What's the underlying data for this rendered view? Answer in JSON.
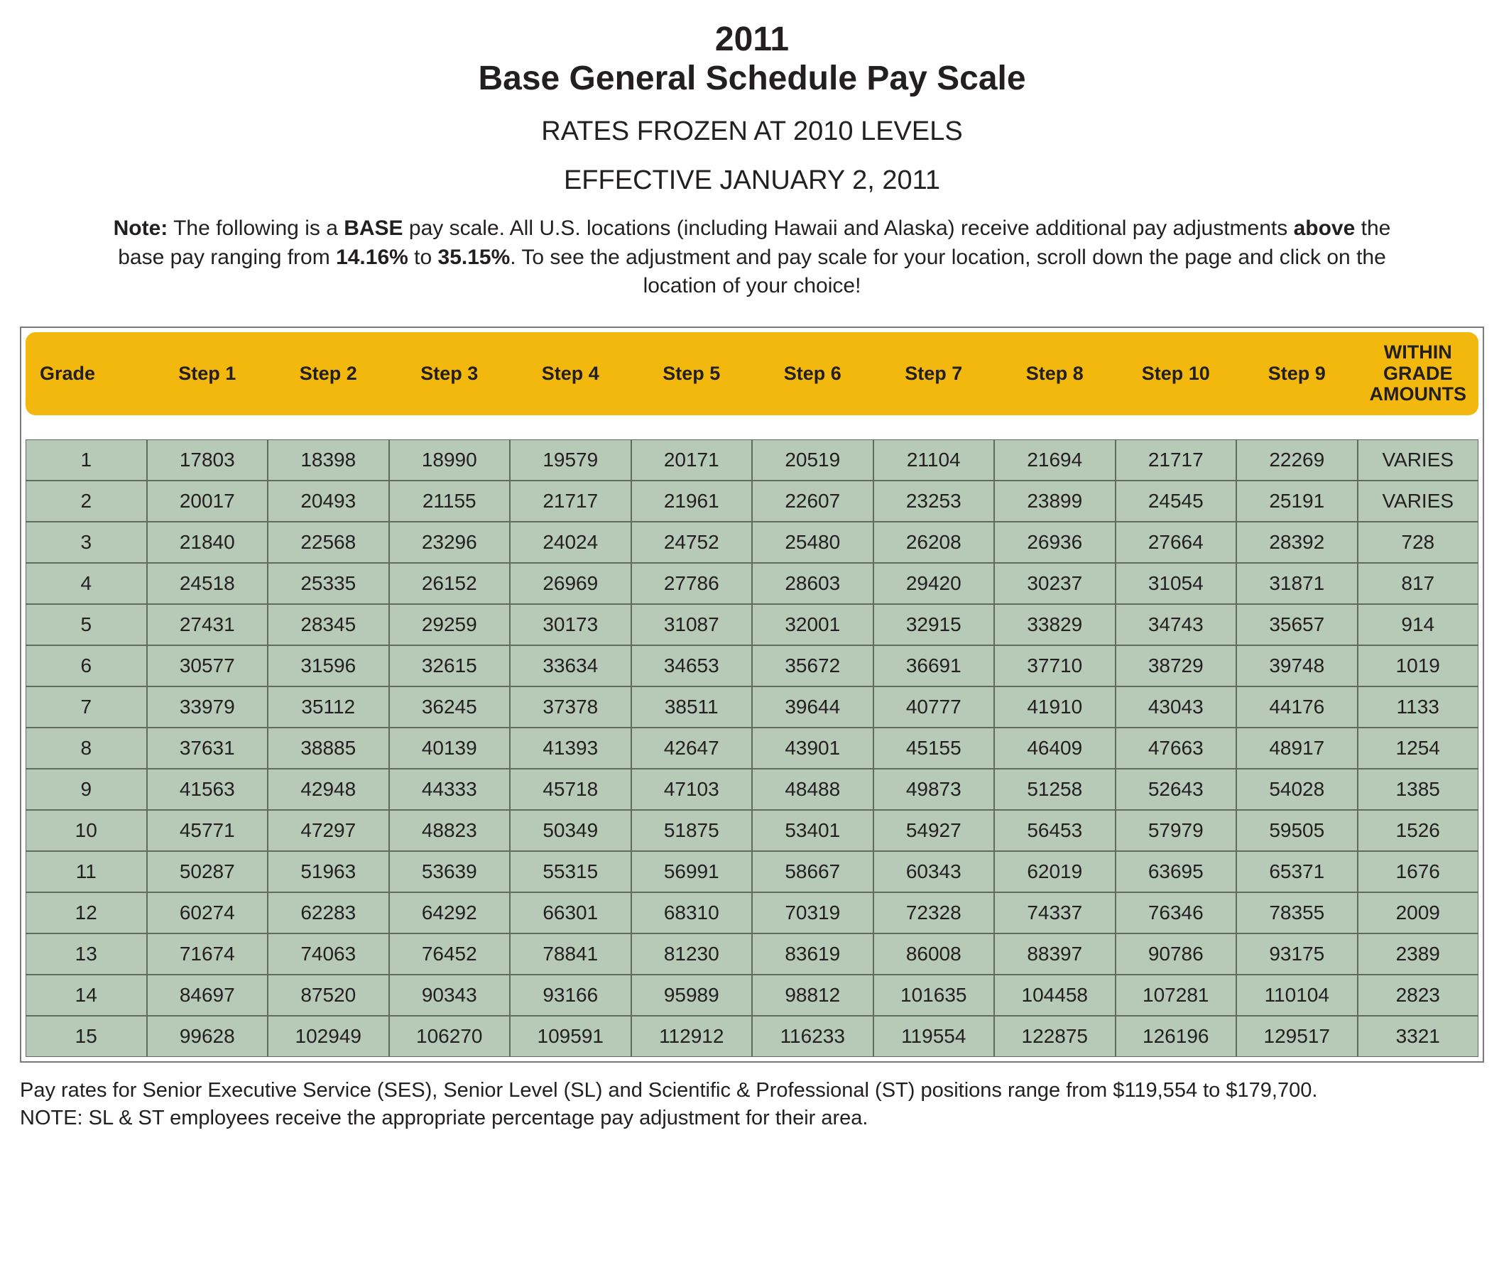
{
  "header": {
    "year": "2011",
    "title": "Base General Schedule Pay Scale",
    "subtitle1": "RATES FROZEN AT 2010 LEVELS",
    "subtitle2": "EFFECTIVE JANUARY 2, 2011"
  },
  "note": {
    "label": "Note:",
    "part1": " The following is a ",
    "base_word": "BASE",
    "part2": " pay scale.  All U.S. locations (including Hawaii and Alaska) receive additional pay adjustments ",
    "above_word": "above",
    "part3": " the base pay ranging from ",
    "pct_low": "14.16%",
    "part4": " to ",
    "pct_high": "35.15%",
    "part5": ". To see the adjustment and pay scale for your location, scroll down the page and click on the location of your choice!"
  },
  "table": {
    "columns": [
      "Grade",
      "Step 1",
      "Step 2",
      "Step 3",
      "Step 4",
      "Step 5",
      "Step 6",
      "Step 7",
      "Step 8",
      "Step 10",
      "Step 9",
      "WITHIN GRADE AMOUNTS"
    ],
    "rows": [
      [
        "1",
        "17803",
        "18398",
        "18990",
        "19579",
        "20171",
        "20519",
        "21104",
        "21694",
        "21717",
        "22269",
        "VARIES"
      ],
      [
        "2",
        "20017",
        "20493",
        "21155",
        "21717",
        "21961",
        "22607",
        "23253",
        "23899",
        "24545",
        "25191",
        "VARIES"
      ],
      [
        "3",
        "21840",
        "22568",
        "23296",
        "24024",
        "24752",
        "25480",
        "26208",
        "26936",
        "27664",
        "28392",
        "728"
      ],
      [
        "4",
        "24518",
        "25335",
        "26152",
        "26969",
        "27786",
        "28603",
        "29420",
        "30237",
        "31054",
        "31871",
        "817"
      ],
      [
        "5",
        "27431",
        "28345",
        "29259",
        "30173",
        "31087",
        "32001",
        "32915",
        "33829",
        "34743",
        "35657",
        "914"
      ],
      [
        "6",
        "30577",
        "31596",
        "32615",
        "33634",
        "34653",
        "35672",
        "36691",
        "37710",
        "38729",
        "39748",
        "1019"
      ],
      [
        "7",
        "33979",
        "35112",
        "36245",
        "37378",
        "38511",
        "39644",
        "40777",
        "41910",
        "43043",
        "44176",
        "1133"
      ],
      [
        "8",
        "37631",
        "38885",
        "40139",
        "41393",
        "42647",
        "43901",
        "45155",
        "46409",
        "47663",
        "48917",
        "1254"
      ],
      [
        "9",
        "41563",
        "42948",
        "44333",
        "45718",
        "47103",
        "48488",
        "49873",
        "51258",
        "52643",
        "54028",
        "1385"
      ],
      [
        "10",
        "45771",
        "47297",
        "48823",
        "50349",
        "51875",
        "53401",
        "54927",
        "56453",
        "57979",
        "59505",
        "1526"
      ],
      [
        "11",
        "50287",
        "51963",
        "53639",
        "55315",
        "56991",
        "58667",
        "60343",
        "62019",
        "63695",
        "65371",
        "1676"
      ],
      [
        "12",
        "60274",
        "62283",
        "64292",
        "66301",
        "68310",
        "70319",
        "72328",
        "74337",
        "76346",
        "78355",
        "2009"
      ],
      [
        "13",
        "71674",
        "74063",
        "76452",
        "78841",
        "81230",
        "83619",
        "86008",
        "88397",
        "90786",
        "93175",
        "2389"
      ],
      [
        "14",
        "84697",
        "87520",
        "90343",
        "93166",
        "95989",
        "98812",
        "101635",
        "104458",
        "107281",
        "110104",
        "2823"
      ],
      [
        "15",
        "99628",
        "102949",
        "106270",
        "109591",
        "112912",
        "116233",
        "119554",
        "122875",
        "126196",
        "129517",
        "3321"
      ]
    ],
    "header_bg": "#f2b80e",
    "cell_bg": "#b7c9b7",
    "cell_border": "#5e6b5e",
    "outer_border": "#7a7a7a"
  },
  "footer": {
    "line1": "Pay rates for Senior Executive Service (SES), Senior Level (SL) and Scientific & Professional (ST) positions range from $119,554 to $179,700.",
    "line2": "NOTE: SL & ST employees receive the appropriate percentage pay adjustment for their area."
  }
}
